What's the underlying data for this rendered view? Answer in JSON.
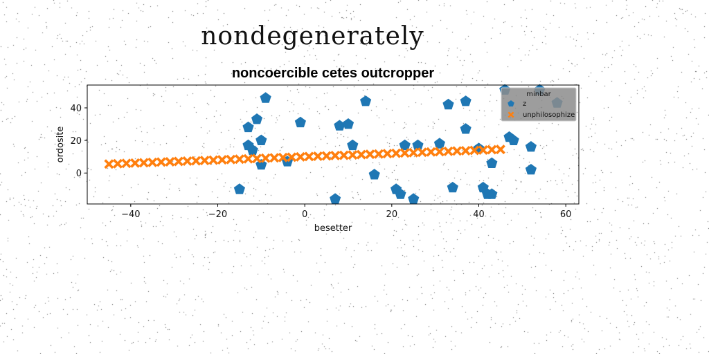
{
  "suptitle": "nondegenerately",
  "chart_data": {
    "type": "scatter",
    "title": "noncoercible cetes outcropper",
    "xlabel": "besetter",
    "ylabel": "ordosite",
    "xlim": [
      -50,
      63
    ],
    "ylim": [
      -19,
      54
    ],
    "xticks": [
      -40,
      -20,
      0,
      20,
      40,
      60
    ],
    "yticks": [
      0,
      20,
      40
    ],
    "xtick_labels": [
      "−40",
      "−20",
      "0",
      "20",
      "40",
      "60"
    ],
    "ytick_labels": [
      "0",
      "20",
      "40"
    ],
    "grid": false,
    "legend": {
      "title": "minbar",
      "placement": "top-right"
    },
    "series": [
      {
        "name": "z",
        "marker": "pentagon",
        "color": "#1f77b4",
        "points": [
          [
            -15,
            -10
          ],
          [
            -13,
            28
          ],
          [
            -13,
            17
          ],
          [
            -12,
            14
          ],
          [
            -11,
            33
          ],
          [
            -10,
            20
          ],
          [
            -10,
            5
          ],
          [
            -9,
            46
          ],
          [
            -4,
            7
          ],
          [
            -1,
            31
          ],
          [
            7,
            -16
          ],
          [
            8,
            29
          ],
          [
            10,
            30
          ],
          [
            11,
            17
          ],
          [
            14,
            44
          ],
          [
            16,
            -1
          ],
          [
            21,
            -10
          ],
          [
            22,
            -13
          ],
          [
            23,
            17
          ],
          [
            25,
            -16
          ],
          [
            26,
            17
          ],
          [
            31,
            18
          ],
          [
            33,
            42
          ],
          [
            34,
            -9
          ],
          [
            37,
            44
          ],
          [
            37,
            27
          ],
          [
            40,
            15
          ],
          [
            41,
            -9
          ],
          [
            42,
            -13
          ],
          [
            43,
            -13
          ],
          [
            43,
            6
          ],
          [
            46,
            51
          ],
          [
            47,
            22
          ],
          [
            48,
            20
          ],
          [
            52,
            16
          ],
          [
            52,
            2
          ],
          [
            54,
            51
          ],
          [
            58,
            43
          ]
        ]
      },
      {
        "name": "unphilosophize",
        "marker": "x",
        "color": "#ff7f0e",
        "x": [
          -45,
          -43,
          -41,
          -39,
          -37,
          -35,
          -33,
          -31,
          -29,
          -27,
          -25,
          -23,
          -21,
          -19,
          -17,
          -15,
          -13,
          -11,
          -9,
          -7,
          -5,
          -3,
          -1,
          1,
          3,
          5,
          7,
          9,
          11,
          13,
          15,
          17,
          19,
          21,
          23,
          25,
          27,
          29,
          31,
          33,
          35,
          37,
          39,
          41,
          43,
          45
        ],
        "y_start": 5.5,
        "y_end": 14.5
      }
    ]
  }
}
